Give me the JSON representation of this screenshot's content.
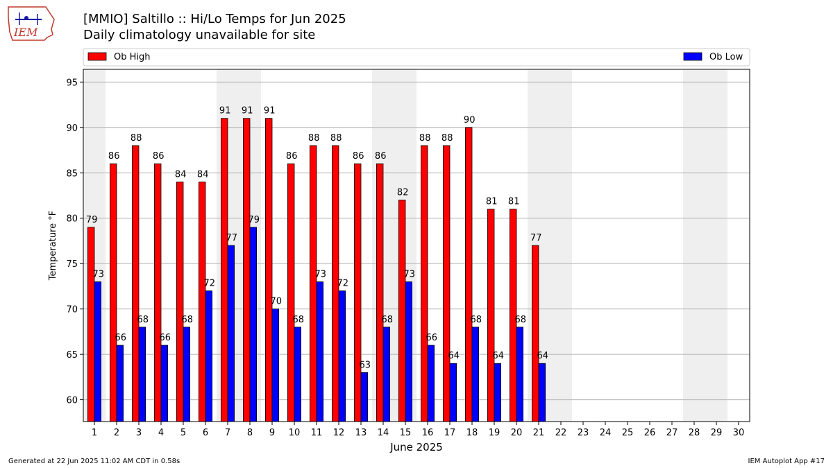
{
  "page": {
    "title_line1": "[MMIO] Saltillo :: Hi/Lo Temps for Jun 2025",
    "title_line2": "Daily climatology unavailable for site",
    "logo_text": "IEM",
    "footer_left": "Generated at 22 Jun 2025 11:02 AM CDT in 0.58s",
    "footer_right": "IEM Autoplot App #17"
  },
  "colors": {
    "high": "#ff0000",
    "low": "#0000ff",
    "weekend_band": "#efefef",
    "grid": "#b0b0b0",
    "logo": "#c0392b"
  },
  "chart_data": {
    "type": "bar",
    "categories": [
      "1",
      "2",
      "3",
      "4",
      "5",
      "6",
      "7",
      "8",
      "9",
      "10",
      "11",
      "12",
      "13",
      "14",
      "15",
      "16",
      "17",
      "18",
      "19",
      "20",
      "21",
      "22",
      "23",
      "24",
      "25",
      "26",
      "27",
      "28",
      "29",
      "30"
    ],
    "series": [
      {
        "name": "Ob High",
        "values": [
          79,
          86,
          88,
          86,
          84,
          84,
          91,
          91,
          91,
          86,
          88,
          88,
          86,
          86,
          82,
          88,
          88,
          90,
          81,
          81,
          77,
          null,
          null,
          null,
          null,
          null,
          null,
          null,
          null,
          null
        ]
      },
      {
        "name": "Ob Low",
        "values": [
          73,
          66,
          68,
          66,
          68,
          72,
          77,
          79,
          70,
          68,
          73,
          72,
          63,
          68,
          73,
          66,
          64,
          68,
          64,
          68,
          64,
          null,
          null,
          null,
          null,
          null,
          null,
          null,
          null,
          null
        ]
      }
    ],
    "xlabel": "June 2025",
    "ylabel": "Temperature °F",
    "ylim": [
      57.6,
      96.4
    ],
    "yticks": [
      60,
      65,
      70,
      75,
      80,
      85,
      90,
      95
    ],
    "shaded_days": [
      1,
      7,
      8,
      14,
      15,
      21,
      22,
      28,
      29
    ],
    "grid": "horizontal",
    "legend_placement": "top"
  }
}
